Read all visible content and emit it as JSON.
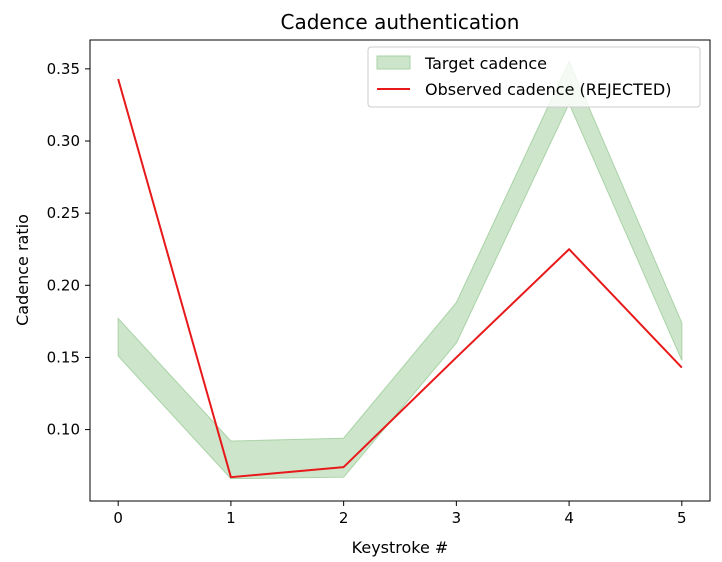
{
  "chart_data": {
    "type": "line",
    "title": "Cadence authentication",
    "xlabel": "Keystroke #",
    "ylabel": "Cadence ratio",
    "xlim": [
      -0.25,
      5.25
    ],
    "ylim": [
      0.0505,
      0.37
    ],
    "x_ticks": [
      0,
      1,
      2,
      3,
      4,
      5
    ],
    "y_ticks": [
      0.1,
      0.15,
      0.2,
      0.25,
      0.3,
      0.35
    ],
    "y_tick_labels": [
      "0.10",
      "0.15",
      "0.20",
      "0.25",
      "0.30",
      "0.35"
    ],
    "x": [
      0,
      1,
      2,
      3,
      4,
      5
    ],
    "series": [
      {
        "name": "Target cadence",
        "kind": "band",
        "lower": [
          0.151,
          0.066,
          0.067,
          0.16,
          0.326,
          0.148
        ],
        "upper": [
          0.177,
          0.092,
          0.094,
          0.188,
          0.355,
          0.174
        ],
        "color": "#cde5cb",
        "edge_color": "#a9d3a6"
      },
      {
        "name": "Observed cadence (REJECTED)",
        "kind": "line",
        "values": [
          0.343,
          0.067,
          0.074,
          0.15,
          0.225,
          0.143
        ],
        "color": "#e8191a"
      }
    ],
    "legend_position": "top-right",
    "grid": false
  }
}
